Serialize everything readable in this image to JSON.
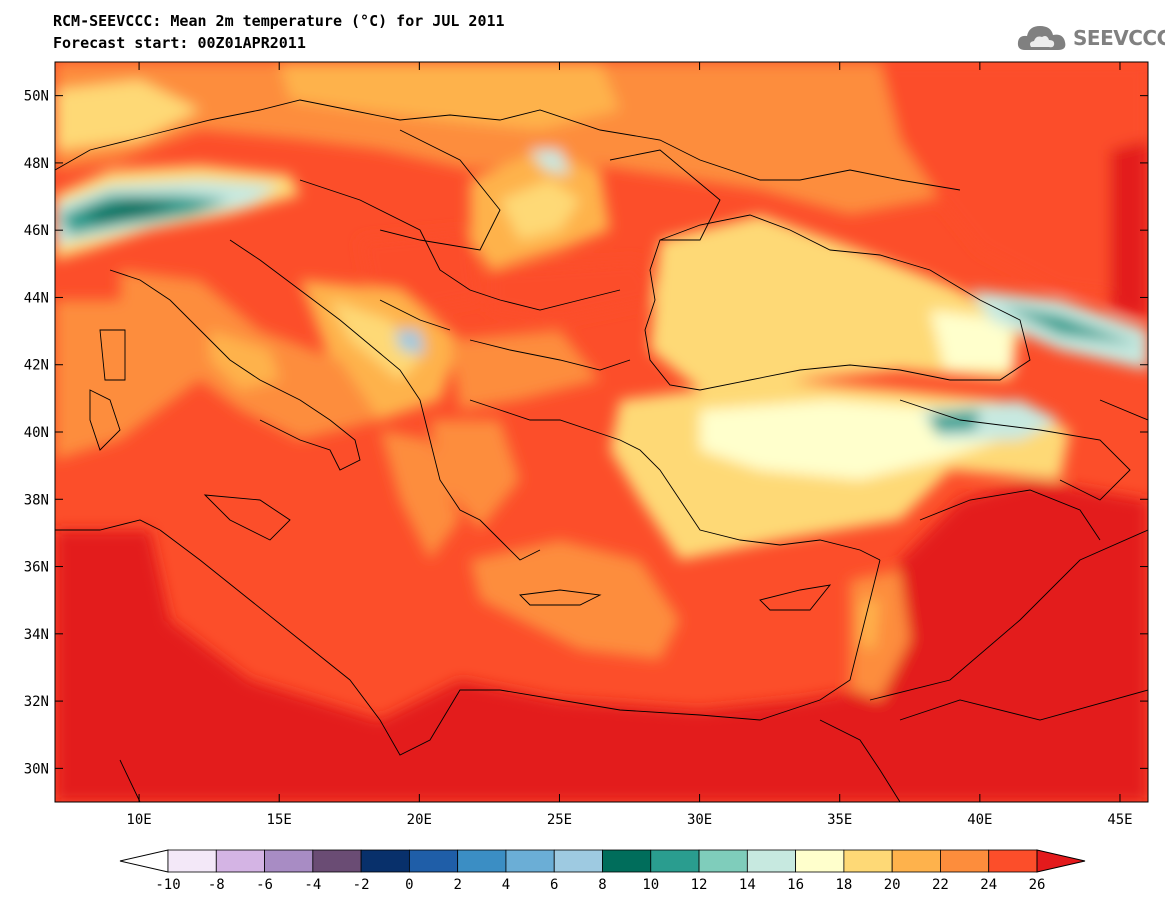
{
  "title": {
    "line1": "RCM-SEEVCCC: Mean 2m temperature (°C) for JUL 2011",
    "line2": "Forecast start: 00Z01APR2011"
  },
  "logo": {
    "icon": "cloud-icon",
    "text": "SEEVCCC",
    "color": "#808080"
  },
  "map": {
    "lon_range": [
      7,
      46
    ],
    "lat_range": [
      29,
      51
    ],
    "lon_ticks": [
      "10E",
      "15E",
      "20E",
      "25E",
      "30E",
      "35E",
      "40E",
      "45E"
    ],
    "lat_ticks": [
      "50N",
      "48N",
      "46N",
      "44N",
      "42N",
      "40N",
      "38N",
      "36N",
      "34N",
      "32N",
      "30N"
    ],
    "background_color": "#fc4e2a"
  },
  "colorbar": {
    "labels": [
      "-10",
      "-8",
      "-6",
      "-4",
      "-2",
      "0",
      "2",
      "4",
      "6",
      "8",
      "10",
      "12",
      "14",
      "16",
      "18",
      "20",
      "22",
      "24",
      "26"
    ],
    "colors": [
      "#ffffff",
      "#f3e8f8",
      "#d4b4e4",
      "#a88cc4",
      "#6a4c74",
      "#08306b",
      "#1f5ea8",
      "#3b8ec4",
      "#6baed6",
      "#9ecae1",
      "#006d5b",
      "#2a9d8f",
      "#7fcdbb",
      "#c7e9e0",
      "#ffffcc",
      "#fed976",
      "#feb24c",
      "#fd8d3c",
      "#fc4e2a",
      "#e31a1c"
    ]
  }
}
